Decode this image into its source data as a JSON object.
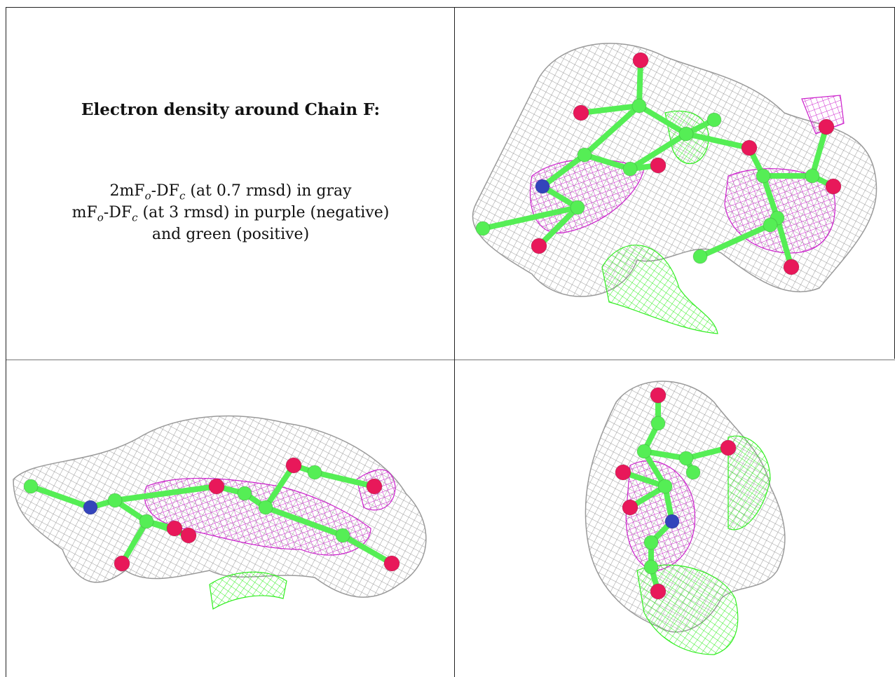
{
  "caption": {
    "title": "Electron density around Chain F:",
    "line1": {
      "prefix": "2mF",
      "sub_o": "o",
      "mid": "-DF",
      "sub_c": "c",
      "suffix": " (at 0.7 rmsd) in gray"
    },
    "line2": {
      "prefix": "mF",
      "sub_o": "o",
      "mid": "-DF",
      "sub_c": "c",
      "suffix": " (at 3 rmsd) in purple (negative)"
    },
    "line3": "and green (positive)"
  },
  "legend_colors": {
    "map_2fofc": "#9a9a9a",
    "negative": "#cc22cc",
    "positive": "#33ee22",
    "carbon": "#55ee55",
    "oxygen": "#e8185a",
    "nitrogen": "#3344bb"
  },
  "panels": [
    {
      "name": "view-top-right"
    },
    {
      "name": "view-bottom-left"
    },
    {
      "name": "view-bottom-right"
    }
  ]
}
